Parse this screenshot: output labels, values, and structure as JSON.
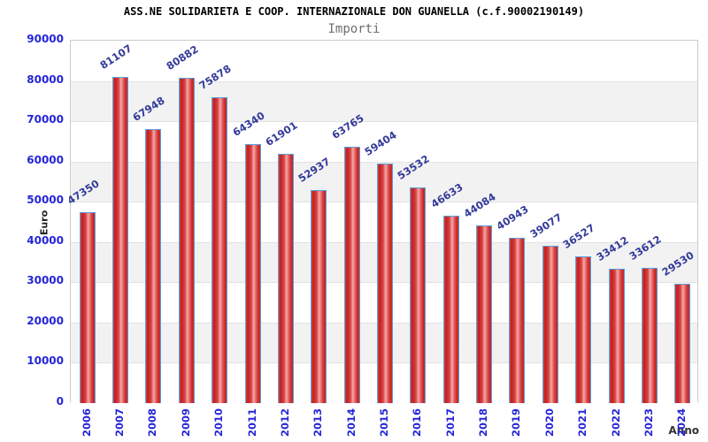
{
  "header": {
    "title": "ASS.NE SOLIDARIETA E COOP. INTERNAZIONALE DON GUANELLA (c.f.90002190149)",
    "subtitle": "Importi"
  },
  "chart_data": {
    "type": "bar",
    "title": "ASS.NE SOLIDARIETA E COOP. INTERNAZIONALE DON GUANELLA (c.f.90002190149)",
    "subtitle": "Importi",
    "xlabel": "Anno",
    "ylabel": "Euro",
    "categories": [
      "2006",
      "2007",
      "2008",
      "2009",
      "2010",
      "2011",
      "2012",
      "2013",
      "2014",
      "2015",
      "2016",
      "2017",
      "2018",
      "2019",
      "2020",
      "2021",
      "2022",
      "2023",
      "2024"
    ],
    "values": [
      47350,
      81107,
      67948,
      80882,
      75878,
      64340,
      61901,
      52937,
      63765,
      59404,
      53532,
      46633,
      44084,
      40943,
      39077,
      36527,
      33412,
      33612,
      29530
    ],
    "ylim": [
      0,
      90000
    ],
    "ytick_step": 10000,
    "ytick_labels": [
      "0",
      "10000",
      "20000",
      "30000",
      "40000",
      "50000",
      "60000",
      "70000",
      "80000",
      "90000"
    ],
    "grid": "horizontal-bands",
    "legend": "none",
    "bar_value_labels_shown": true
  },
  "colors": {
    "axis_tick": "#2525d8",
    "value_label": "#333a99",
    "bar_border": "#58a2dd",
    "bar_dark": "#bf1f1f",
    "bar_mid": "#d94545",
    "bar_light": "#f5a8a8",
    "band_gray": "#f2f2f2",
    "gridline": "#e2e2e2",
    "plot_border": "#cccccc"
  }
}
